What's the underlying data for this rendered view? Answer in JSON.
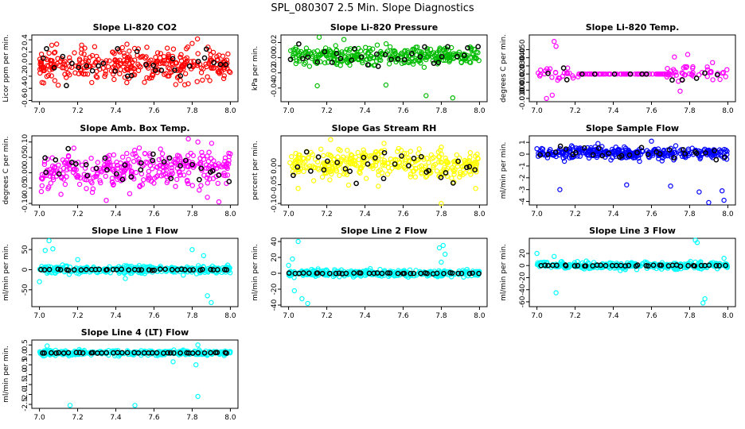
{
  "page": {
    "title": "SPL_080307  2.5 Min. Slope Diagnostics"
  },
  "chart_data": [
    {
      "type": "scatter",
      "title": "Slope Li-820 CO2",
      "ylabel": "Licor ppm per min.",
      "xlim": [
        6.96,
        8.04
      ],
      "ylim": [
        -0.62,
        0.48
      ],
      "xticks": [
        7.0,
        7.2,
        7.4,
        7.6,
        7.8,
        8.0
      ],
      "yticks": [
        -0.6,
        -0.4,
        -0.2,
        0.0,
        0.2,
        0.4
      ],
      "yticklabels": [
        "-0.6",
        "-0.4",
        "-0.2",
        "0.0",
        "0.2",
        "0.4"
      ],
      "color": "#ff0000",
      "highlight_color": "#000000",
      "pattern": {
        "n": 330,
        "spread": 0.2,
        "center": 0.0,
        "nhi": 30
      },
      "series": [
        {
          "name": "",
          "values": [
            [
              7.02,
              -0.05
            ],
            [
              7.05,
              0.18
            ],
            [
              7.09,
              0.33
            ],
            [
              7.14,
              -0.22
            ],
            [
              7.21,
              0.08
            ],
            [
              7.3,
              -0.12
            ],
            [
              7.42,
              0.2
            ],
            [
              7.55,
              -0.3
            ],
            [
              7.68,
              0.1
            ],
            [
              7.8,
              0.34
            ],
            [
              7.88,
              -0.21
            ],
            [
              7.97,
              0.05
            ]
          ]
        }
      ]
    },
    {
      "type": "scatter",
      "title": "Slope Li-820 Pressure",
      "ylabel": "kPa per min.",
      "xlim": [
        6.96,
        8.04
      ],
      "ylim": [
        -0.058,
        0.03
      ],
      "xticks": [
        7.0,
        7.2,
        7.4,
        7.6,
        7.8,
        8.0
      ],
      "yticks": [
        -0.04,
        -0.02,
        0.0,
        0.02
      ],
      "yticklabels": [
        "-0.04",
        "-0.02",
        "0.00",
        "0.02"
      ],
      "color": "#00bb00",
      "highlight_color": "#000000",
      "pattern": {
        "n": 320,
        "spread": 0.009,
        "center": 0.002,
        "nhi": 30
      },
      "series": [
        {
          "name": "",
          "values": [
            [
              7.16,
              0.027
            ],
            [
              7.15,
              -0.037
            ],
            [
              7.29,
              0.024
            ],
            [
              7.72,
              -0.05
            ],
            [
              7.86,
              -0.053
            ],
            [
              7.51,
              -0.036
            ],
            [
              7.95,
              0.014
            ]
          ]
        }
      ]
    },
    {
      "type": "scatter",
      "title": "Slope Li-820 Temp.",
      "ylabel": "degrees C per min.",
      "xlim": [
        6.96,
        8.04
      ],
      "ylim": [
        -0.014,
        0.068
      ],
      "xticks": [
        7.0,
        7.2,
        7.4,
        7.6,
        7.8,
        8.0
      ],
      "yticks": [
        -0.01,
        0.0,
        0.01,
        0.02,
        0.03,
        0.04,
        0.05
      ],
      "yticklabels": [
        "-0.010",
        "0.000",
        "0.010",
        "0.020",
        "0.030",
        "0.040",
        "0.050"
      ],
      "color": "#ff00ff",
      "highlight_color": "#000000",
      "pattern": {
        "n": 140,
        "spread": 0.006,
        "center": 0.02,
        "nhi": 14,
        "flat_from": 7.22,
        "flat_to": 7.68,
        "flat_value": 0.02
      },
      "series": [
        {
          "name": "",
          "values": [
            [
              7.09,
              0.06
            ],
            [
              7.1,
              0.054
            ],
            [
              7.05,
              -0.01
            ],
            [
              7.08,
              -0.006
            ],
            [
              7.72,
              0.041
            ],
            [
              7.79,
              0.044
            ],
            [
              7.92,
              0.034
            ],
            [
              7.75,
              -0.001
            ]
          ]
        }
      ]
    },
    {
      "type": "scatter",
      "title": "Slope Amb. Box Temp.",
      "ylabel": "degrees C per min.",
      "xlim": [
        6.96,
        8.04
      ],
      "ylim": [
        -0.105,
        0.12
      ],
      "xticks": [
        7.0,
        7.2,
        7.4,
        7.6,
        7.8,
        8.0
      ],
      "yticks": [
        -0.1,
        -0.05,
        0.0,
        0.05,
        0.1
      ],
      "yticklabels": [
        "-0.10",
        "-0.05",
        "0.00",
        "0.05",
        "0.10"
      ],
      "color": "#ff00ff",
      "highlight_color": "#000000",
      "pattern": {
        "n": 330,
        "spread": 0.04,
        "center": 0.01,
        "nhi": 32,
        "trend": 0.03
      },
      "series": [
        {
          "name": "",
          "values": [
            [
              7.78,
              0.11
            ],
            [
              7.83,
              0.1
            ],
            [
              7.94,
              -0.095
            ],
            [
              7.88,
              -0.08
            ],
            [
              7.18,
              0.08
            ],
            [
              7.35,
              -0.09
            ]
          ]
        }
      ]
    },
    {
      "type": "scatter",
      "title": "Slope Gas Stream RH",
      "ylabel": "percent per min.",
      "xlim": [
        6.96,
        8.04
      ],
      "ylim": [
        -0.104,
        0.08
      ],
      "xticks": [
        7.0,
        7.2,
        7.4,
        7.6,
        7.8,
        8.0
      ],
      "yticks": [
        -0.1,
        -0.05,
        0.0
      ],
      "yticklabels": [
        "-0.10",
        "-0.05",
        "0.00"
      ],
      "color": "#ffff00",
      "highlight_color": "#000000",
      "pattern": {
        "n": 330,
        "spread": 0.028,
        "center": 0.005,
        "nhi": 30
      },
      "series": [
        {
          "name": "",
          "values": [
            [
              7.8,
              -0.1
            ],
            [
              7.22,
              0.07
            ],
            [
              7.05,
              -0.06
            ],
            [
              7.98,
              -0.06
            ],
            [
              7.5,
              0.06
            ]
          ]
        }
      ]
    },
    {
      "type": "scatter",
      "title": "Slope Sample Flow",
      "ylabel": "ml/min per min.",
      "xlim": [
        6.96,
        8.04
      ],
      "ylim": [
        -4.3,
        1.55
      ],
      "xticks": [
        7.0,
        7.2,
        7.4,
        7.6,
        7.8,
        8.0
      ],
      "yticks": [
        -4,
        -3,
        -2,
        -1,
        0,
        1
      ],
      "yticklabels": [
        "-4",
        "-3",
        "-2",
        "-1",
        "0",
        "1"
      ],
      "color": "#0000ff",
      "highlight_color": "#000000",
      "pattern": {
        "n": 330,
        "spread": 0.35,
        "center": 0.1,
        "nhi": 30
      },
      "series": [
        {
          "name": "",
          "values": [
            [
              7.12,
              -3.0
            ],
            [
              7.47,
              -2.6
            ],
            [
              7.7,
              -2.7
            ],
            [
              7.85,
              -3.2
            ],
            [
              7.97,
              -3.1
            ],
            [
              7.98,
              -3.9
            ],
            [
              7.9,
              -4.1
            ],
            [
              7.32,
              0.9
            ],
            [
              7.6,
              1.1
            ]
          ]
        }
      ]
    },
    {
      "type": "scatter",
      "title": "Slope Line 1 Flow",
      "ylabel": "ml/min per min.",
      "xlim": [
        6.96,
        8.04
      ],
      "ylim": [
        -92,
        78
      ],
      "xticks": [
        7.0,
        7.2,
        7.4,
        7.6,
        7.8,
        8.0
      ],
      "yticks": [
        -50,
        0,
        50
      ],
      "yticklabels": [
        "-50",
        "0",
        "50"
      ],
      "color": "#00ffff",
      "highlight_color": "#000000",
      "pattern": {
        "n": 330,
        "spread": 7,
        "center": 0,
        "nhi": 40,
        "hi_tight": 1
      },
      "series": [
        {
          "name": "",
          "values": [
            [
              7.05,
              72
            ],
            [
              7.03,
              48
            ],
            [
              7.07,
              52
            ],
            [
              7.8,
              50
            ],
            [
              7.88,
              -65
            ],
            [
              7.9,
              -82
            ],
            [
              7.86,
              35
            ],
            [
              7.0,
              -30
            ],
            [
              7.2,
              25
            ],
            [
              7.45,
              -22
            ]
          ]
        }
      ]
    },
    {
      "type": "scatter",
      "title": "Slope Line 2 Flow",
      "ylabel": "ml/min per min.",
      "xlim": [
        6.96,
        8.04
      ],
      "ylim": [
        -42,
        44
      ],
      "xticks": [
        7.0,
        7.2,
        7.4,
        7.6,
        7.8,
        8.0
      ],
      "yticks": [
        -40,
        -20,
        0,
        20,
        40
      ],
      "yticklabels": [
        "-40",
        "-20",
        "0",
        "20",
        "40"
      ],
      "color": "#00ffff",
      "highlight_color": "#000000",
      "pattern": {
        "n": 330,
        "spread": 3,
        "center": 0,
        "nhi": 40,
        "hi_tight": 1
      },
      "series": [
        {
          "name": "",
          "values": [
            [
              7.05,
              40
            ],
            [
              7.02,
              18
            ],
            [
              7.03,
              -22
            ],
            [
              7.07,
              -32
            ],
            [
              7.1,
              -38
            ],
            [
              7.79,
              32
            ],
            [
              7.81,
              35
            ],
            [
              7.82,
              24
            ],
            [
              7.8,
              14
            ],
            [
              7.0,
              10
            ]
          ]
        }
      ]
    },
    {
      "type": "scatter",
      "title": "Slope Line 3 Flow",
      "ylabel": "ml/min per min.",
      "xlim": [
        6.96,
        8.04
      ],
      "ylim": [
        -68,
        45
      ],
      "xticks": [
        7.0,
        7.2,
        7.4,
        7.6,
        7.8,
        8.0
      ],
      "yticks": [
        -60,
        -40,
        -20,
        0,
        20
      ],
      "yticklabels": [
        "-60",
        "-40",
        "-20",
        "0",
        "20"
      ],
      "color": "#00ffff",
      "highlight_color": "#000000",
      "pattern": {
        "n": 330,
        "spread": 4,
        "center": 0,
        "nhi": 40,
        "hi_tight": 1
      },
      "series": [
        {
          "name": "",
          "values": [
            [
              7.83,
              42
            ],
            [
              7.84,
              38
            ],
            [
              7.88,
              -55
            ],
            [
              7.87,
              -62
            ],
            [
              7.1,
              -45
            ],
            [
              7.0,
              20
            ],
            [
              7.98,
              12
            ],
            [
              7.09,
              15
            ]
          ]
        }
      ]
    },
    {
      "type": "scatter",
      "title": "Slope Line 4 (LT) Flow",
      "ylabel": "ml/min per min.",
      "xlim": [
        6.96,
        8.04
      ],
      "ylim": [
        -2.7,
        0.75
      ],
      "xticks": [
        7.0,
        7.2,
        7.4,
        7.6,
        7.8,
        8.0
      ],
      "yticks": [
        -2.5,
        -2.0,
        -1.5,
        -1.0,
        -0.5,
        0.0,
        0.5
      ],
      "yticklabels": [
        "-2.5",
        "-2.0",
        "-1.5",
        "-1.0",
        "-0.5",
        "0.0",
        "0.5"
      ],
      "color": "#00ffff",
      "highlight_color": "#000000",
      "pattern": {
        "n": 330,
        "spread": 0.09,
        "center": 0.1,
        "nhi": 40,
        "hi_tight": 1
      },
      "series": [
        {
          "name": "",
          "values": [
            [
              7.16,
              -2.55
            ],
            [
              7.5,
              -2.55
            ],
            [
              7.83,
              -2.1
            ],
            [
              7.04,
              0.45
            ],
            [
              7.83,
              0.5
            ],
            [
              7.82,
              -0.5
            ],
            [
              7.7,
              -0.35
            ]
          ]
        }
      ]
    }
  ]
}
